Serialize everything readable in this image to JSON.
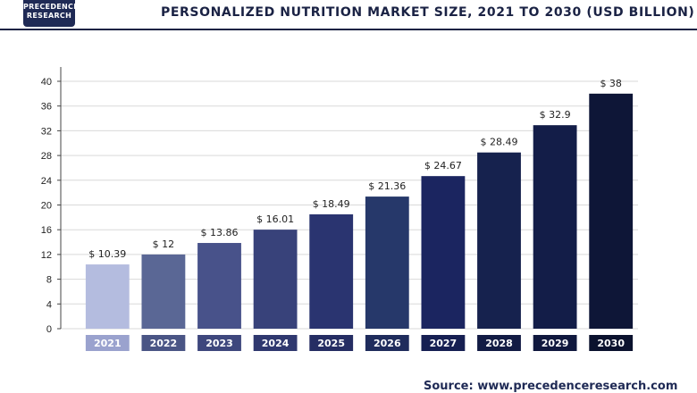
{
  "header": {
    "logo_line1": "PRECEDENCE",
    "logo_line2": "RESEARCH",
    "title": "PERSONALIZED NUTRITION MARKET SIZE, 2021 TO 2030 (USD BILLION)"
  },
  "footer": {
    "source_label": "Source:",
    "source_url": "www.precedenceresearch.com"
  },
  "chart_data": {
    "type": "bar",
    "title": "PERSONALIZED NUTRITION MARKET SIZE, 2021 TO 2030 (USD BILLION)",
    "categories": [
      "2021",
      "2022",
      "2023",
      "2024",
      "2025",
      "2026",
      "2027",
      "2028",
      "2029",
      "2030"
    ],
    "values": [
      10.39,
      12,
      13.86,
      16.01,
      18.49,
      21.36,
      24.67,
      28.49,
      32.9,
      38
    ],
    "data_labels": [
      "$ 10.39",
      "$ 12",
      "$ 13.86",
      "$ 16.01",
      "$ 18.49",
      "$ 21.36",
      "$ 24.67",
      "$ 28.49",
      "$ 32.9",
      "$ 38"
    ],
    "yticks": [
      0,
      4,
      8,
      12,
      16,
      20,
      24,
      28,
      32,
      36,
      40
    ],
    "ylim": [
      0,
      40
    ],
    "xlabel": "",
    "ylabel": "",
    "grid": true,
    "bar_colors": [
      "#b4bcdf",
      "#5a6795",
      "#48528a",
      "#38427a",
      "#2a3470",
      "#26386a",
      "#1b2560",
      "#16224e",
      "#131d48",
      "#0e1637"
    ],
    "label_box_colors": [
      "#9aa2ce",
      "#4a5585",
      "#3e477d",
      "#2f386f",
      "#252d63",
      "#1f2c5c",
      "#161f52",
      "#121b44",
      "#10183e",
      "#0b122e"
    ]
  }
}
